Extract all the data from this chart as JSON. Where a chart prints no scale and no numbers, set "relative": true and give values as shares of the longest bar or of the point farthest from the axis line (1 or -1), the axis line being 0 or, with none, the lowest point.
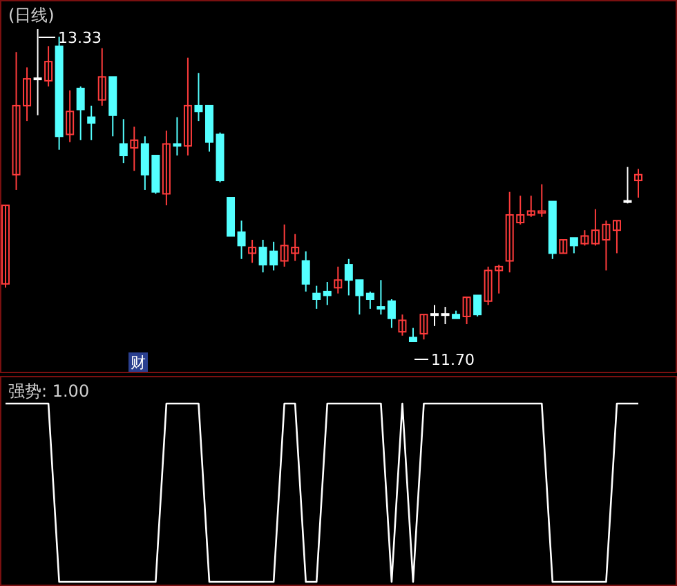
{
  "chart_data": [
    {
      "type": "candlestick",
      "title": "(日线)",
      "categories": [
        null,
        null,
        null,
        null,
        null,
        null,
        null,
        null,
        null,
        null,
        null,
        null,
        null,
        null,
        null,
        null,
        null,
        null,
        null,
        null,
        null,
        null,
        null,
        null,
        null,
        null,
        null,
        null,
        null,
        null,
        null,
        null,
        null,
        null,
        null,
        null,
        null,
        null,
        null,
        null,
        null,
        null,
        null,
        null,
        null,
        null,
        null,
        null,
        null,
        null,
        null,
        null,
        null,
        null,
        null,
        null,
        null,
        null,
        null,
        null
      ],
      "ohlc": [
        [
          12.0,
          12.41,
          11.98,
          12.41
        ],
        [
          12.57,
          13.21,
          12.49,
          12.93
        ],
        [
          12.93,
          13.13,
          12.85,
          13.07
        ],
        [
          13.07,
          13.33,
          12.88,
          13.07
        ],
        [
          13.06,
          13.24,
          13.03,
          13.16
        ],
        [
          13.24,
          13.29,
          12.7,
          12.77
        ],
        [
          12.78,
          13.01,
          12.74,
          12.9
        ],
        [
          13.02,
          13.03,
          12.75,
          12.91
        ],
        [
          12.87,
          12.93,
          12.75,
          12.84
        ],
        [
          12.96,
          13.23,
          12.93,
          13.08
        ],
        [
          13.08,
          13.08,
          12.77,
          12.88
        ],
        [
          12.73,
          12.86,
          12.63,
          12.67
        ],
        [
          12.71,
          12.82,
          12.59,
          12.75
        ],
        [
          12.73,
          12.77,
          12.49,
          12.57
        ],
        [
          12.67,
          12.67,
          12.47,
          12.48
        ],
        [
          12.47,
          12.8,
          12.41,
          12.73
        ],
        [
          12.73,
          12.87,
          12.67,
          12.72
        ],
        [
          12.72,
          13.18,
          12.67,
          12.93
        ],
        [
          12.93,
          13.1,
          12.85,
          12.9
        ],
        [
          12.93,
          12.93,
          12.69,
          12.74
        ],
        [
          12.78,
          12.79,
          12.53,
          12.54
        ],
        [
          12.45,
          12.45,
          12.25,
          12.25
        ],
        [
          12.27,
          12.33,
          12.13,
          12.2
        ],
        [
          12.16,
          12.23,
          12.11,
          12.19
        ],
        [
          12.19,
          12.23,
          12.06,
          12.1
        ],
        [
          12.17,
          12.22,
          12.07,
          12.1
        ],
        [
          12.12,
          12.31,
          12.09,
          12.2
        ],
        [
          12.16,
          12.26,
          12.12,
          12.19
        ],
        [
          12.12,
          12.17,
          11.96,
          12.0
        ],
        [
          11.95,
          11.99,
          11.87,
          11.92
        ],
        [
          11.96,
          12.01,
          11.89,
          11.94
        ],
        [
          11.98,
          12.09,
          11.95,
          12.02
        ],
        [
          12.1,
          12.13,
          11.94,
          12.02
        ],
        [
          12.02,
          12.02,
          11.84,
          11.94
        ],
        [
          11.95,
          11.96,
          11.87,
          11.92
        ],
        [
          11.88,
          12.02,
          11.84,
          11.87
        ],
        [
          11.91,
          11.92,
          11.77,
          11.82
        ],
        [
          11.75,
          11.84,
          11.73,
          11.81
        ],
        [
          11.72,
          11.77,
          11.7,
          11.7
        ],
        [
          11.74,
          11.84,
          11.71,
          11.84
        ],
        [
          11.84,
          11.89,
          11.78,
          11.84
        ],
        [
          11.84,
          11.88,
          11.79,
          11.84
        ],
        [
          11.84,
          11.86,
          11.82,
          11.82
        ],
        [
          11.83,
          11.93,
          11.79,
          11.93
        ],
        [
          11.94,
          11.94,
          11.83,
          11.84
        ],
        [
          11.91,
          12.09,
          11.89,
          12.07
        ],
        [
          12.07,
          12.1,
          11.95,
          12.09
        ],
        [
          12.12,
          12.48,
          12.06,
          12.36
        ],
        [
          12.32,
          12.46,
          12.31,
          12.36
        ],
        [
          12.36,
          12.46,
          12.35,
          12.38
        ],
        [
          12.37,
          12.52,
          12.35,
          12.38
        ],
        [
          12.43,
          12.43,
          12.13,
          12.16
        ],
        [
          12.16,
          12.23,
          12.16,
          12.23
        ],
        [
          12.24,
          12.24,
          12.16,
          12.2
        ],
        [
          12.21,
          12.28,
          12.2,
          12.25
        ],
        [
          12.21,
          12.39,
          12.2,
          12.28
        ],
        [
          12.23,
          12.33,
          12.07,
          12.31
        ],
        [
          12.28,
          12.33,
          12.16,
          12.33
        ],
        [
          12.43,
          12.61,
          12.42,
          12.43
        ],
        [
          12.54,
          12.6,
          12.45,
          12.57
        ]
      ],
      "annotations": [
        "13.33",
        "11.70",
        "财"
      ]
    },
    {
      "type": "line",
      "title": "强势: 1.00",
      "relative": true,
      "categories": [
        null,
        null,
        null,
        null,
        null,
        null,
        null,
        null,
        null,
        null,
        null,
        null,
        null,
        null,
        null,
        null,
        null,
        null,
        null,
        null,
        null,
        null,
        null,
        null,
        null,
        null,
        null,
        null,
        null,
        null,
        null,
        null,
        null,
        null,
        null,
        null,
        null,
        null,
        null,
        null,
        null,
        null,
        null,
        null,
        null,
        null,
        null,
        null,
        null,
        null,
        null,
        null,
        null,
        null,
        null,
        null,
        null,
        null,
        null,
        null
      ],
      "series": [
        {
          "color": "#ffffff",
          "values": [
            1,
            1,
            1,
            1,
            1,
            0,
            0,
            0,
            0,
            0,
            0,
            0,
            0,
            0,
            0,
            1,
            1,
            1,
            1,
            0,
            0,
            0,
            0,
            0,
            0,
            0,
            1,
            1,
            0,
            0,
            1,
            1,
            1,
            1,
            1,
            1,
            0,
            1,
            0,
            1,
            1,
            1,
            1,
            1,
            1,
            1,
            1,
            1,
            1,
            1,
            1,
            0,
            0,
            0,
            0,
            0,
            0,
            1,
            1,
            1
          ]
        }
      ]
    }
  ]
}
